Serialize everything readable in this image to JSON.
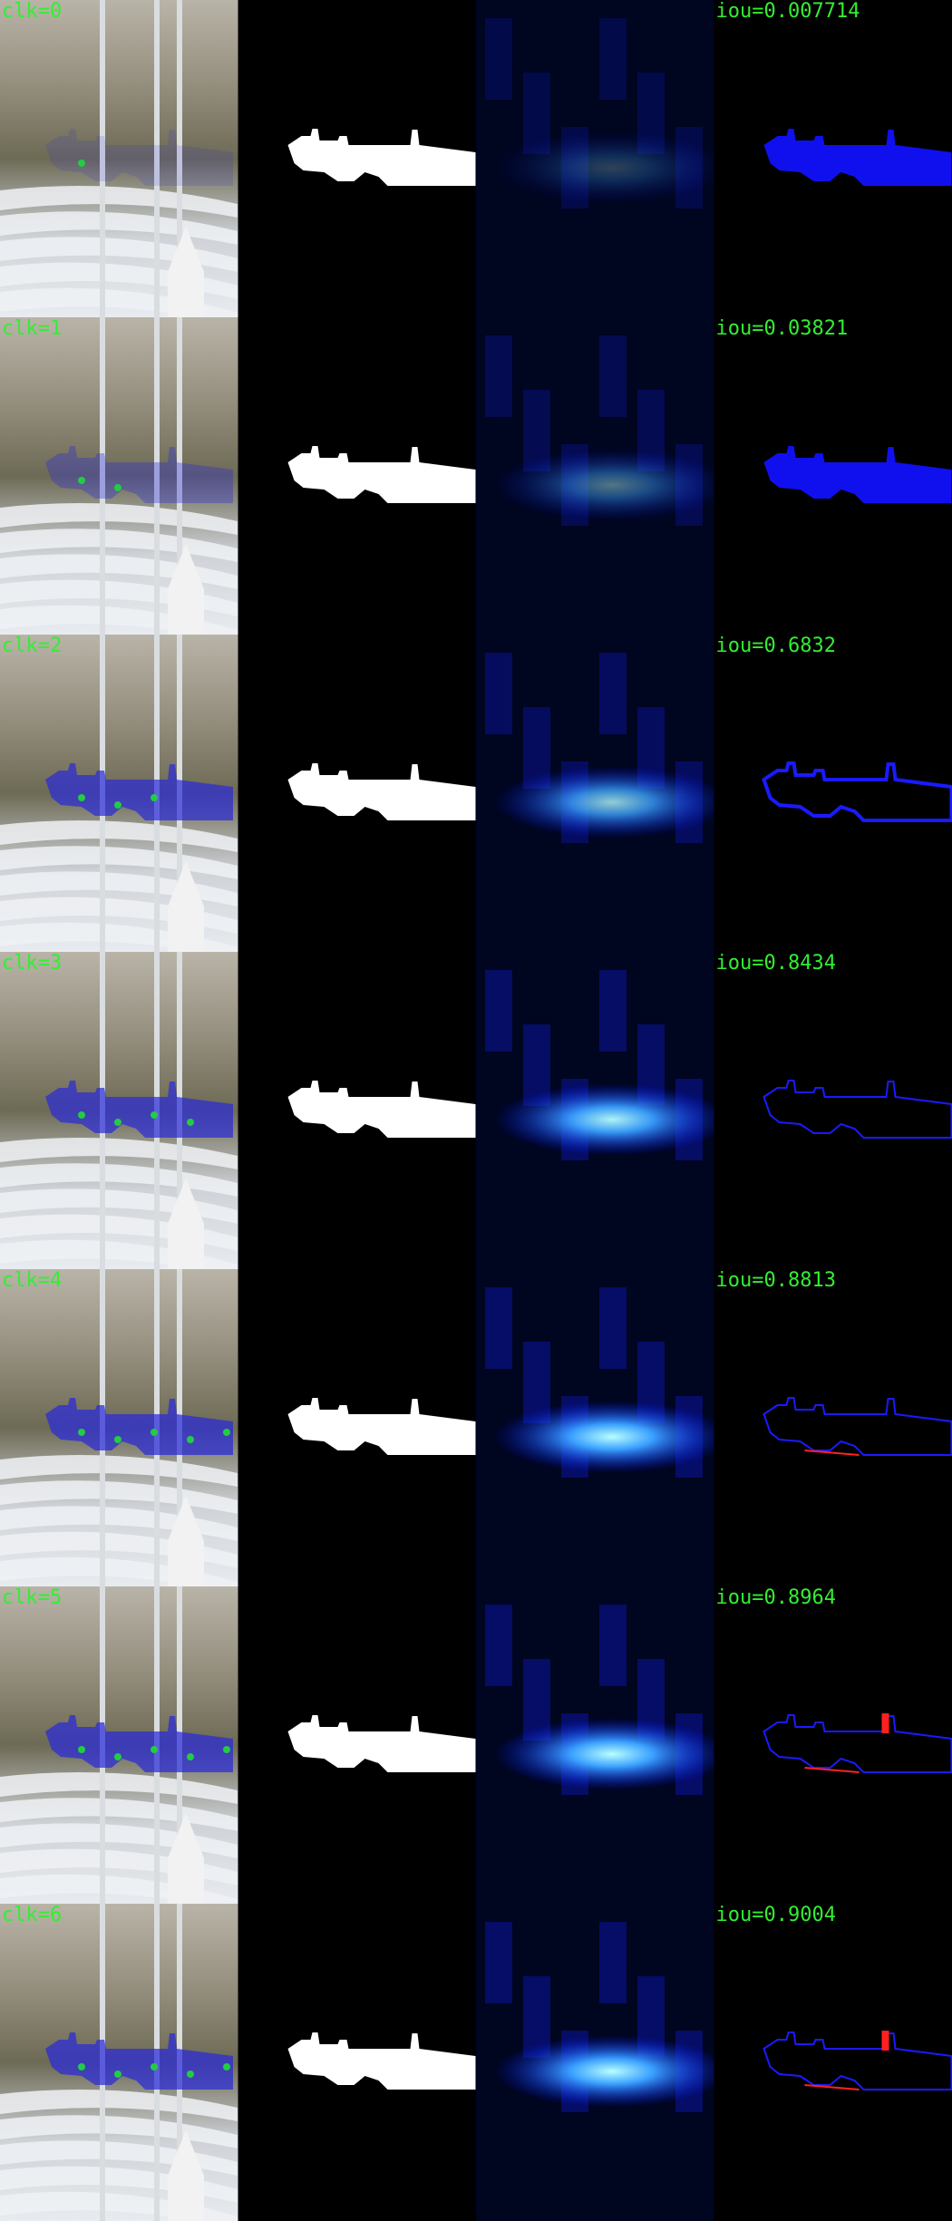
{
  "rows": [
    {
      "clk": "clk=0",
      "iou": "iou=0.007714"
    },
    {
      "clk": "clk=1",
      "iou": "iou=0.03821"
    },
    {
      "clk": "clk=2",
      "iou": "iou=0.6832"
    },
    {
      "clk": "clk=3",
      "iou": "iou=0.8434"
    },
    {
      "clk": "clk=4",
      "iou": "iou=0.8813"
    },
    {
      "clk": "clk=5",
      "iou": "iou=0.8964"
    },
    {
      "clk": "clk=6",
      "iou": "iou=0.9004"
    }
  ]
}
